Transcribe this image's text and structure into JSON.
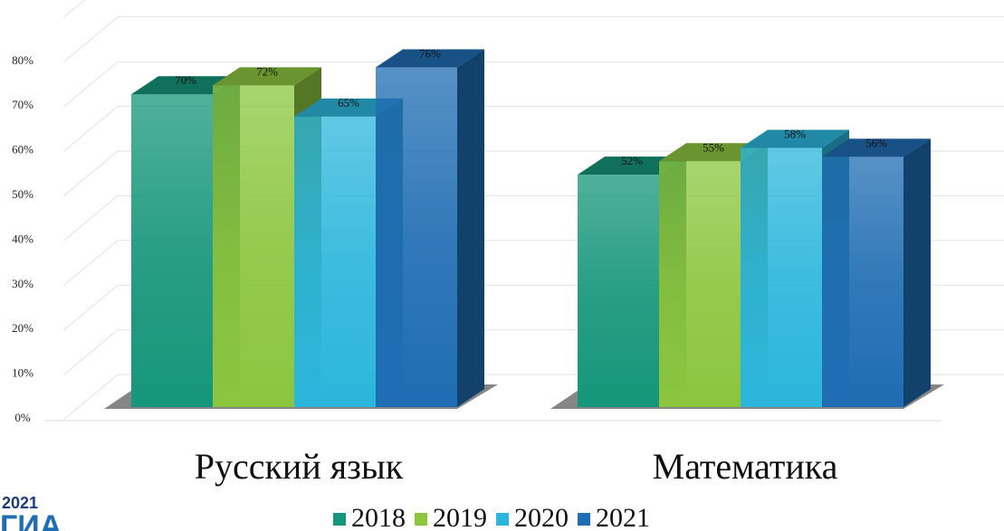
{
  "chart_data": {
    "type": "bar3d",
    "categories": [
      "Русский язык",
      "Математика"
    ],
    "series": [
      {
        "name": "2018",
        "color": "#16967a",
        "values": [
          70,
          52
        ],
        "value_labels": [
          "70%",
          "52%"
        ]
      },
      {
        "name": "2019",
        "color": "#8cc63f",
        "values": [
          72,
          55
        ],
        "value_labels": [
          "72%",
          "55%"
        ]
      },
      {
        "name": "2020",
        "color": "#2cb6dc",
        "values": [
          65,
          58
        ],
        "value_labels": [
          "65%",
          "58%"
        ]
      },
      {
        "name": "2021",
        "color": "#1f6db3",
        "values": [
          76,
          56
        ],
        "value_labels": [
          "76%",
          "56%"
        ]
      }
    ],
    "ylim": [
      0,
      90
    ],
    "yticks": [
      {
        "value": 0,
        "label": "0%"
      },
      {
        "value": 10,
        "label": "10%"
      },
      {
        "value": 20,
        "label": "20%"
      },
      {
        "value": 30,
        "label": "30%"
      },
      {
        "value": 40,
        "label": "40%"
      },
      {
        "value": 50,
        "label": "50%"
      },
      {
        "value": 60,
        "label": "60%"
      },
      {
        "value": 70,
        "label": "70%"
      },
      {
        "value": 80,
        "label": "80%"
      }
    ],
    "grid": true,
    "legend": "bottom",
    "annotations": [
      "2021",
      "ГИА"
    ]
  }
}
